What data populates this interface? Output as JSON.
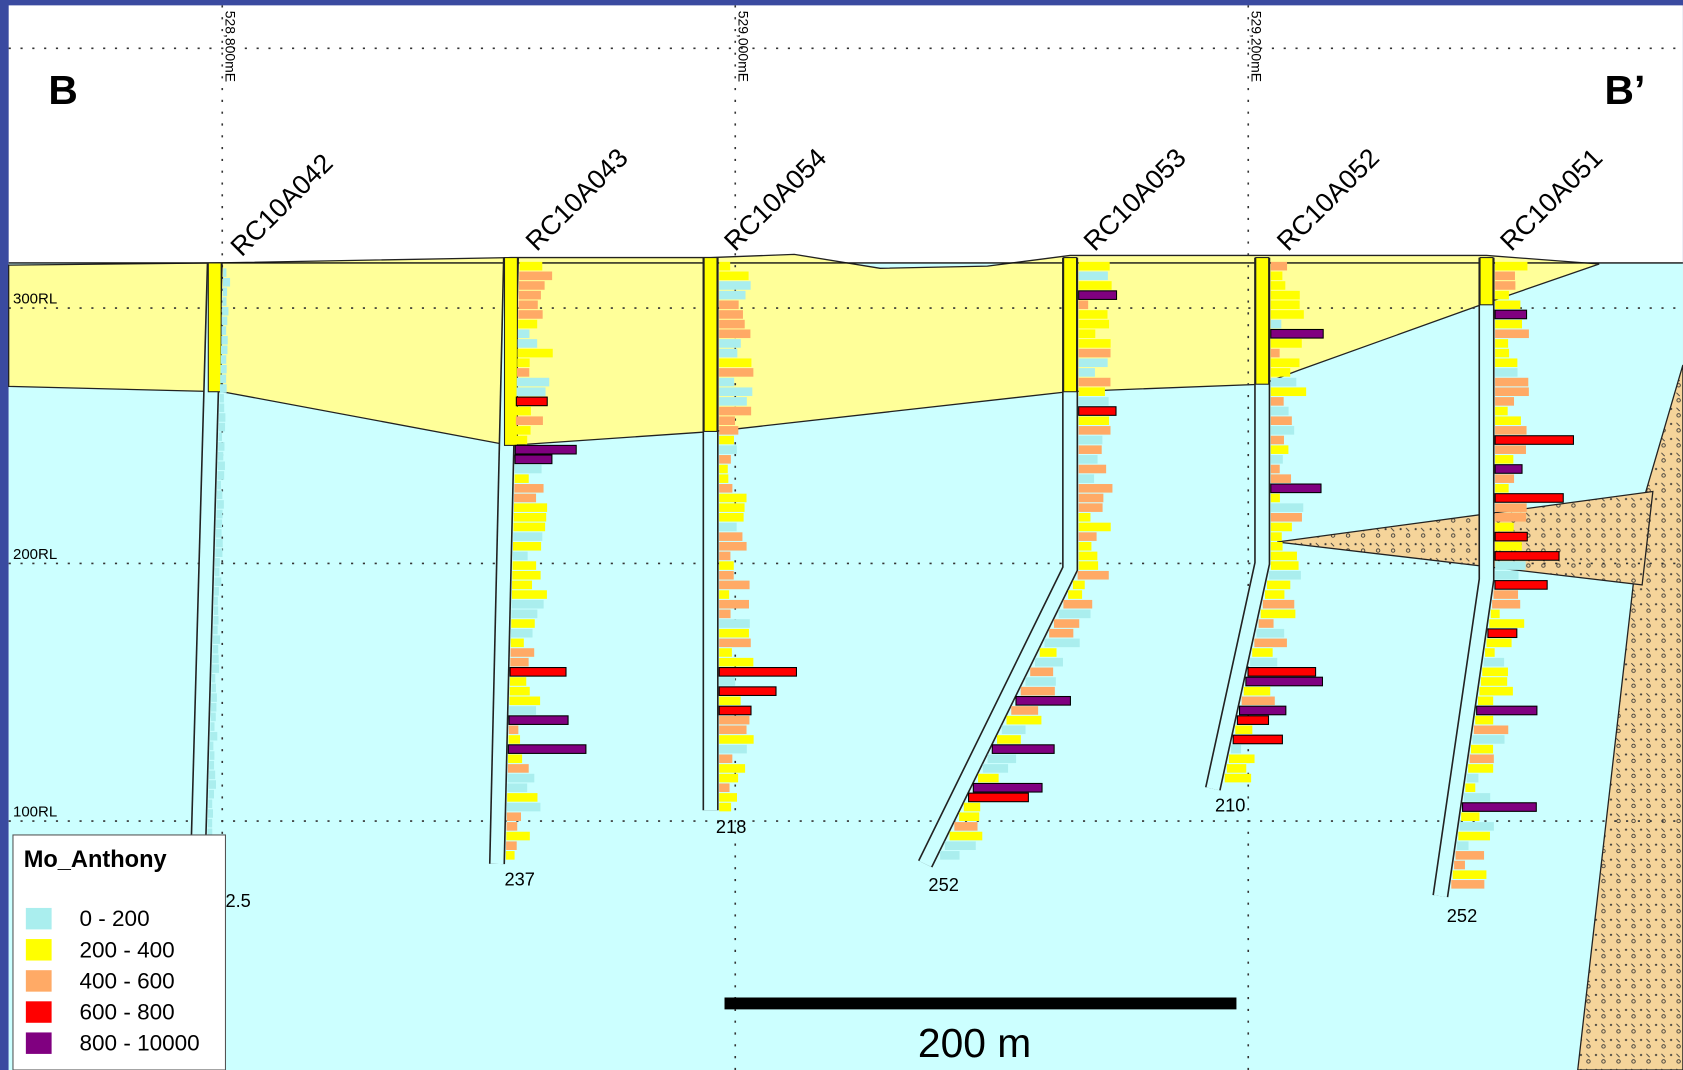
{
  "header": {
    "left_label": "B",
    "right_label": "B’"
  },
  "eastings": [
    "528,800mE",
    "529,000mE",
    "529,200mE"
  ],
  "elevations": [
    "300RL",
    "200RL",
    "100RL"
  ],
  "holes": [
    {
      "name": "RC10A042",
      "depth": "2.5"
    },
    {
      "name": "RC10A043",
      "depth": "237"
    },
    {
      "name": "RC10A054",
      "depth": "218"
    },
    {
      "name": "RC10A053",
      "depth": "252"
    },
    {
      "name": "RC10A052",
      "depth": "210"
    },
    {
      "name": "RC10A051",
      "depth": "252"
    }
  ],
  "legend": {
    "title": "Mo_Anthony",
    "items": [
      {
        "label": "0 - 200",
        "color": "#aaeeee"
      },
      {
        "label": "200 - 400",
        "color": "#ffff00"
      },
      {
        "label": "400 - 600",
        "color": "#ffaa66"
      },
      {
        "label": "600 - 800",
        "color": "#ff0000"
      },
      {
        "label": "800 - 10000",
        "color": "#800080"
      }
    ]
  },
  "scale_bar": "200 m"
}
